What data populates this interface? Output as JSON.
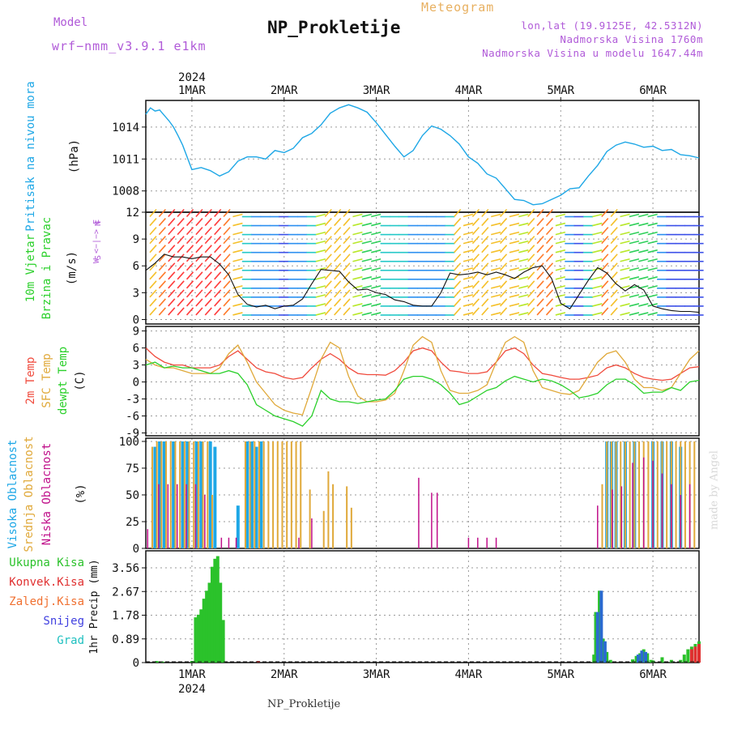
{
  "header": {
    "model_label": "Model",
    "model_run": "wrf−nmm_v3.9.1  e1km",
    "title": "NP_Prokletije",
    "meteogram": "Meteogram",
    "lonlat": "lon,lat (19.9125E, 42.5312N)",
    "elevation": "Nadmorska Visina 1760m",
    "model_elevation": "Nadmorska Visina u modelu 1647.44m"
  },
  "footer": {
    "name": "NP_Prokletije",
    "watermark": "made by Angel"
  },
  "colors": {
    "pressure": "#1ea7e6",
    "temp2m": "#f04a3c",
    "sfc": "#e0a93a",
    "dewpt": "#2bd02b",
    "high_cloud": "#1ea7e6",
    "mid_cloud": "#e0a93a",
    "low_cloud": "#c0108a",
    "precip": "#2bc22b",
    "conv": "#e03030",
    "ice": "#f07030",
    "snow": "#4040e0",
    "graupel": "#20c0c0",
    "wind_text": "#b05ad8"
  },
  "chart_data": [
    {
      "type": "line",
      "name": "pressure",
      "ylabel": [
        "Pritisak na nivou mora",
        "(hPa)"
      ],
      "yticks": [
        1008,
        1011,
        1014
      ],
      "ylim": [
        1006,
        1016.5
      ],
      "x_unit": "days from 1MAR 00UTC",
      "xlim": [
        -0.5,
        5.5
      ],
      "grid": true,
      "x": [
        -0.5,
        -0.45,
        -0.4,
        -0.35,
        -0.3,
        -0.25,
        -0.2,
        -0.15,
        -0.1,
        0.0,
        0.1,
        0.2,
        0.3,
        0.4,
        0.5,
        0.6,
        0.7,
        0.8,
        0.9,
        1.0,
        1.1,
        1.2,
        1.3,
        1.4,
        1.5,
        1.6,
        1.7,
        1.8,
        1.9,
        2.0,
        2.1,
        2.2,
        2.3,
        2.4,
        2.5,
        2.6,
        2.7,
        2.8,
        2.9,
        3.0,
        3.1,
        3.2,
        3.3,
        3.4,
        3.5,
        3.6,
        3.7,
        3.8,
        3.9,
        4.0,
        4.1,
        4.2,
        4.3,
        4.4,
        4.5,
        4.6,
        4.7,
        4.8,
        4.9,
        5.0,
        5.1,
        5.2,
        5.3,
        5.4,
        5.5
      ],
      "values": [
        1015.2,
        1015.8,
        1015.5,
        1015.6,
        1015.1,
        1014.6,
        1014.0,
        1013.2,
        1012.3,
        1010.0,
        1010.2,
        1009.9,
        1009.4,
        1009.8,
        1010.8,
        1011.2,
        1011.2,
        1011.0,
        1011.8,
        1011.6,
        1012.0,
        1013.0,
        1013.4,
        1014.2,
        1015.3,
        1015.8,
        1016.1,
        1015.8,
        1015.4,
        1014.4,
        1013.3,
        1012.2,
        1011.2,
        1011.8,
        1013.2,
        1014.1,
        1013.8,
        1013.2,
        1012.4,
        1011.2,
        1010.6,
        1009.6,
        1009.2,
        1008.2,
        1007.2,
        1007.1,
        1006.7,
        1006.8,
        1007.2,
        1007.6,
        1008.2,
        1008.3,
        1009.4,
        1010.4,
        1011.7,
        1012.3,
        1012.6,
        1012.4,
        1012.1,
        1012.2,
        1011.8,
        1011.9,
        1011.4,
        1011.3,
        1011.1
      ]
    },
    {
      "type": "line",
      "name": "wind",
      "ylabel": [
        "10m Vjetar",
        "Brzina i Pravac",
        "(m/s)"
      ],
      "direction_legend": [
        "N",
        "W <−|−> E",
        "S"
      ],
      "yticks": [
        0,
        3,
        6,
        9,
        12
      ],
      "ylim": [
        -0.5,
        12
      ],
      "xlim": [
        -0.5,
        5.5
      ],
      "grid": true,
      "x": [
        -0.5,
        -0.4,
        -0.3,
        -0.2,
        -0.1,
        0.0,
        0.1,
        0.2,
        0.3,
        0.4,
        0.5,
        0.6,
        0.7,
        0.8,
        0.9,
        1.0,
        1.1,
        1.2,
        1.3,
        1.4,
        1.5,
        1.6,
        1.7,
        1.8,
        1.9,
        2.0,
        2.1,
        2.2,
        2.3,
        2.4,
        2.5,
        2.6,
        2.7,
        2.8,
        2.9,
        3.0,
        3.1,
        3.2,
        3.3,
        3.4,
        3.5,
        3.6,
        3.7,
        3.8,
        3.9,
        4.0,
        4.1,
        4.2,
        4.3,
        4.4,
        4.5,
        4.6,
        4.7,
        4.8,
        4.9,
        5.0,
        5.1,
        5.2,
        5.3,
        5.4,
        5.5
      ],
      "series": [
        {
          "name": "speed",
          "values": [
            5.5,
            6.3,
            7.3,
            7.0,
            7.0,
            6.8,
            7.0,
            7.0,
            6.2,
            5.0,
            2.8,
            1.7,
            1.4,
            1.6,
            1.2,
            1.5,
            1.6,
            2.3,
            4.0,
            5.6,
            5.5,
            5.4,
            4.2,
            3.3,
            3.4,
            3.0,
            2.8,
            2.2,
            2.0,
            1.6,
            1.5,
            1.5,
            3.0,
            5.2,
            5.0,
            5.1,
            5.3,
            5.0,
            5.3,
            5.0,
            4.6,
            5.3,
            5.8,
            6.0,
            4.6,
            1.8,
            1.2,
            2.8,
            4.4,
            5.8,
            5.2,
            4.0,
            3.2,
            3.9,
            3.3,
            1.5,
            1.2,
            1.0,
            0.9,
            0.9,
            0.8
          ]
        }
      ]
    },
    {
      "type": "line",
      "name": "temperature",
      "ylabel": [
        "2m Temp",
        "SFC Temp",
        "dewpt Temp",
        "(C)"
      ],
      "yticks": [
        -9,
        -6,
        -3,
        0,
        3,
        6,
        9
      ],
      "ylim": [
        -9.5,
        9.8
      ],
      "xlim": [
        -0.5,
        5.5
      ],
      "grid": true,
      "x": [
        -0.5,
        -0.4,
        -0.3,
        -0.2,
        -0.1,
        0.0,
        0.1,
        0.2,
        0.3,
        0.4,
        0.5,
        0.6,
        0.7,
        0.8,
        0.9,
        1.0,
        1.1,
        1.2,
        1.3,
        1.4,
        1.5,
        1.6,
        1.7,
        1.8,
        1.9,
        2.0,
        2.1,
        2.2,
        2.3,
        2.4,
        2.5,
        2.6,
        2.7,
        2.8,
        2.9,
        3.0,
        3.1,
        3.2,
        3.3,
        3.4,
        3.5,
        3.6,
        3.7,
        3.8,
        3.9,
        4.0,
        4.1,
        4.2,
        4.3,
        4.4,
        4.5,
        4.6,
        4.7,
        4.8,
        4.9,
        5.0,
        5.1,
        5.2,
        5.3,
        5.4,
        5.5
      ],
      "series": [
        {
          "name": "2m Temp",
          "values": [
            6.0,
            4.5,
            3.5,
            3.0,
            3.0,
            2.5,
            2.5,
            2.5,
            3.0,
            4.5,
            5.5,
            4.0,
            2.5,
            1.8,
            1.5,
            0.8,
            0.5,
            0.8,
            2.5,
            4.0,
            5.0,
            4.0,
            2.5,
            1.5,
            1.3,
            1.3,
            1.2,
            2.0,
            3.5,
            5.5,
            6.0,
            5.5,
            3.5,
            2.0,
            1.8,
            1.5,
            1.5,
            1.8,
            3.5,
            5.5,
            6.0,
            5.0,
            3.0,
            1.5,
            1.2,
            0.8,
            0.5,
            0.5,
            0.8,
            1.2,
            2.5,
            3.0,
            2.5,
            1.5,
            0.8,
            0.5,
            0.3,
            0.5,
            1.5,
            2.5,
            2.7
          ]
        },
        {
          "name": "SFC Temp",
          "values": [
            4.0,
            3.0,
            2.5,
            2.5,
            2.0,
            1.5,
            1.5,
            1.5,
            2.5,
            5.0,
            6.5,
            3.5,
            0.0,
            -2.0,
            -4.0,
            -5.0,
            -5.5,
            -5.8,
            -1.0,
            4.0,
            7.0,
            6.0,
            1.0,
            -2.5,
            -3.5,
            -3.5,
            -3.2,
            -2.0,
            2.0,
            6.5,
            8.0,
            7.0,
            2.0,
            -1.5,
            -2.0,
            -2.0,
            -1.5,
            -0.5,
            3.5,
            7.0,
            8.0,
            7.0,
            2.0,
            -1.0,
            -1.5,
            -2.0,
            -2.2,
            -1.5,
            1.0,
            3.5,
            5.0,
            5.5,
            3.5,
            0.5,
            -1.0,
            -1.0,
            -1.5,
            -1.0,
            1.5,
            4.0,
            5.5
          ]
        },
        {
          "name": "dewpt Temp",
          "values": [
            3.0,
            3.5,
            2.5,
            2.8,
            2.5,
            2.5,
            2.0,
            1.5,
            1.5,
            2.0,
            1.5,
            -0.5,
            -4.0,
            -5.0,
            -6.0,
            -6.5,
            -7.0,
            -7.8,
            -6.0,
            -1.5,
            -3.0,
            -3.5,
            -3.5,
            -3.8,
            -3.5,
            -3.2,
            -3.0,
            -1.5,
            0.5,
            1.0,
            1.0,
            0.5,
            -0.5,
            -2.0,
            -4.0,
            -3.5,
            -2.5,
            -1.5,
            -1.0,
            0.2,
            1.0,
            0.5,
            0.0,
            0.5,
            0.2,
            -0.5,
            -1.5,
            -2.8,
            -2.5,
            -2.0,
            -0.5,
            0.5,
            0.5,
            -0.5,
            -2.0,
            -1.8,
            -1.8,
            -1.0,
            -1.5,
            0.0,
            0.3
          ]
        }
      ]
    },
    {
      "type": "bar",
      "name": "cloud",
      "ylabel": [
        "Visoka Oblacnost",
        "Srednja Oblacnost",
        "Niska Oblacnost",
        "(%)"
      ],
      "yticks": [
        0,
        25,
        50,
        75,
        100
      ],
      "ylim": [
        0,
        103
      ],
      "xlim": [
        -0.5,
        5.5
      ],
      "grid": true,
      "series": [
        {
          "name": "Visoka Oblacnost",
          "x": [
            -0.4,
            -0.35,
            -0.3,
            -0.2,
            -0.1,
            -0.05,
            0.05,
            0.1,
            0.2,
            0.25,
            0.5,
            0.6,
            0.65,
            0.7,
            0.75,
            4.5,
            4.55,
            4.6,
            4.7,
            4.8,
            5.0,
            5.1,
            5.2,
            5.3
          ],
          "values": [
            95,
            100,
            100,
            100,
            100,
            100,
            100,
            100,
            100,
            95,
            40,
            100,
            100,
            95,
            100,
            100,
            100,
            100,
            100,
            100,
            100,
            100,
            100,
            95
          ]
        },
        {
          "name": "Srednja Oblacnost",
          "x": [
            -0.43,
            -0.38,
            -0.33,
            -0.28,
            -0.23,
            -0.18,
            -0.13,
            -0.08,
            -0.03,
            0.02,
            0.07,
            0.12,
            0.17,
            0.22,
            0.58,
            0.63,
            0.68,
            0.73,
            0.78,
            0.83,
            0.88,
            0.93,
            0.98,
            1.03,
            1.08,
            1.13,
            1.18,
            1.28,
            1.43,
            1.48,
            1.53,
            1.68,
            1.73,
            4.45,
            4.5,
            4.55,
            4.6,
            4.65,
            4.7,
            4.75,
            4.8,
            4.85,
            4.9,
            4.95,
            5.0,
            5.05,
            5.1,
            5.15,
            5.2,
            5.25,
            5.3,
            5.35,
            5.4,
            5.45
          ],
          "values": [
            95,
            100,
            100,
            100,
            100,
            100,
            100,
            100,
            100,
            100,
            100,
            100,
            100,
            50,
            100,
            100,
            100,
            100,
            100,
            100,
            100,
            100,
            100,
            100,
            100,
            100,
            100,
            55,
            35,
            72,
            60,
            58,
            38,
            60,
            100,
            100,
            100,
            100,
            100,
            100,
            100,
            100,
            100,
            100,
            100,
            100,
            100,
            100,
            100,
            100,
            100,
            100,
            100,
            100
          ]
        },
        {
          "name": "Niska Oblacnost",
          "x": [
            -0.48,
            -0.36,
            -0.26,
            -0.16,
            -0.06,
            0.04,
            0.14,
            0.32,
            0.4,
            0.48,
            1.16,
            1.3,
            2.46,
            2.6,
            2.66,
            3.0,
            3.1,
            3.2,
            3.3,
            4.4,
            4.56,
            4.66,
            4.78,
            4.9,
            5.0,
            5.1,
            5.2,
            5.3,
            5.4
          ],
          "values": [
            18,
            60,
            60,
            60,
            60,
            60,
            50,
            10,
            10,
            10,
            10,
            28,
            66,
            52,
            52,
            10,
            10,
            10,
            10,
            40,
            55,
            58,
            80,
            85,
            82,
            70,
            60,
            50,
            60
          ]
        }
      ]
    },
    {
      "type": "bar",
      "name": "precip",
      "ylabel": [
        "Ukupna Kisa",
        "Konvek.Kisa",
        "Zaledj.Kisa",
        "Snijeg",
        "Grad",
        "1hr Precip (mm)"
      ],
      "yticks": [
        0,
        0.89,
        1.78,
        2.67,
        3.56
      ],
      "yticklabels": [
        "0",
        "0.89",
        "1.78",
        "2.67",
        "3.56"
      ],
      "ylim": [
        0,
        4.2
      ],
      "xlim": [
        -0.5,
        5.5
      ],
      "grid": true,
      "x_tick_labels": [
        "1MAR",
        "2MAR",
        "3MAR",
        "4MAR",
        "5MAR",
        "6MAR"
      ],
      "year_label": "2024",
      "series": [
        {
          "name": "Ukupna Kisa",
          "x": [
            -0.38,
            -0.32,
            0.0,
            0.04,
            0.07,
            0.1,
            0.13,
            0.16,
            0.19,
            0.22,
            0.25,
            0.28,
            0.31,
            0.34,
            4.36,
            4.38,
            4.42,
            4.46,
            4.5,
            4.54,
            4.78,
            4.82,
            4.86,
            4.9,
            4.94,
            4.98,
            5.0,
            5.1,
            5.2,
            5.3,
            5.34,
            5.38,
            5.42,
            5.46,
            5.5
          ],
          "values": [
            0.06,
            0.04,
            0.06,
            1.7,
            1.8,
            2.0,
            2.4,
            2.7,
            3.0,
            3.6,
            3.9,
            4.0,
            3.0,
            1.6,
            0.3,
            1.9,
            2.7,
            0.9,
            0.4,
            0.1,
            0.12,
            0.25,
            0.35,
            0.5,
            0.35,
            0.1,
            0.08,
            0.2,
            0.1,
            0.1,
            0.3,
            0.5,
            0.6,
            0.7,
            0.8
          ]
        },
        {
          "name": "Konvek.Kisa",
          "x": [
            0.72,
            5.42,
            5.46,
            5.5
          ],
          "values": [
            0.06,
            0.5,
            0.6,
            0.7
          ]
        },
        {
          "name": "Snijeg",
          "x": [
            4.4,
            4.44,
            4.48,
            4.84,
            4.88,
            4.92
          ],
          "values": [
            1.9,
            2.7,
            0.8,
            0.3,
            0.45,
            0.4
          ]
        }
      ]
    }
  ]
}
